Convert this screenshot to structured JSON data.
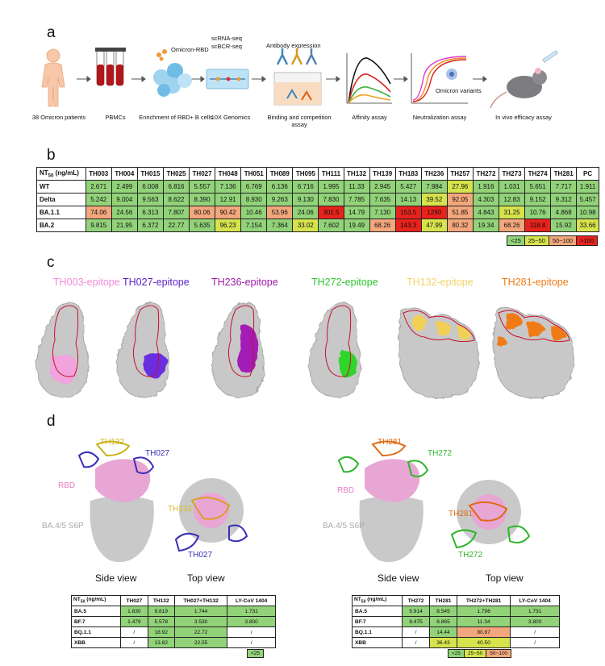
{
  "panels": {
    "a": "a",
    "b": "b",
    "c": "c",
    "d": "d"
  },
  "workflow": {
    "captions": [
      "38 Omicron patients",
      "PBMCs",
      "Enrichment of RBD+ B cells",
      "10X Genomics",
      "Binding and competition assay",
      "Affinity assay",
      "Neutralization assay",
      "In vivo efficacy assay"
    ],
    "omicron_rbd": "Omicron-RBD",
    "sc_seq_1": "scRNA-seq",
    "sc_seq_2": "scBCR-seq",
    "antibody_expression": "Antibody expression",
    "omicron_variants": "Omicron variants"
  },
  "table_b": {
    "header_label": "NT",
    "header_sub": "50",
    "header_unit": " (ng/mL)",
    "columns": [
      "TH003",
      "TH004",
      "TH015",
      "TH025",
      "TH027",
      "TH048",
      "TH051",
      "TH089",
      "TH095",
      "TH111",
      "TH132",
      "TH139",
      "TH183",
      "TH236",
      "TH257",
      "TH272",
      "TH273",
      "TH274",
      "TH281",
      "PC"
    ],
    "rows": [
      {
        "label": "WT",
        "values": [
          "2.671",
          "2.499",
          "6.008",
          "6.816",
          "5.557",
          "7.136",
          "6.769",
          "6.136",
          "6.716",
          "1.995",
          "11.33",
          "2.945",
          "5.427",
          "7.984",
          "27.96",
          "1.916",
          "1.031",
          "5.651",
          "7.717",
          "1.911"
        ],
        "colors": [
          "g",
          "g",
          "g",
          "g",
          "g",
          "g",
          "g",
          "g",
          "g",
          "g",
          "g",
          "g",
          "g",
          "g",
          "y",
          "g",
          "g",
          "g",
          "g",
          "g"
        ]
      },
      {
        "label": "Delta",
        "values": [
          "5.242",
          "9.004",
          "9.563",
          "8.622",
          "8.390",
          "12.91",
          "8.930",
          "9.263",
          "9.130",
          "7.830",
          "7.785",
          "7.635",
          "14.13",
          "39.52",
          "92.05",
          "4.303",
          "12.83",
          "9.152",
          "9.312",
          "5.457"
        ],
        "colors": [
          "g",
          "g",
          "g",
          "g",
          "g",
          "g",
          "g",
          "g",
          "g",
          "g",
          "g",
          "g",
          "g",
          "y",
          "o",
          "g",
          "g",
          "g",
          "g",
          "g"
        ]
      },
      {
        "label": "BA.1.1",
        "values": [
          "74.06",
          "24.56",
          "6.313",
          "7.807",
          "80.06",
          "90.42",
          "10.46",
          "53.96",
          "24.06",
          "301.5",
          "14.79",
          "7.130",
          "153.5",
          "1290",
          "51.85",
          "4.843",
          "31.25",
          "10.76",
          "4.868",
          "10.98"
        ],
        "colors": [
          "o",
          "g",
          "g",
          "g",
          "o",
          "o",
          "g",
          "o",
          "g",
          "r",
          "g",
          "g",
          "r",
          "r",
          "o",
          "g",
          "y",
          "g",
          "g",
          "g"
        ]
      },
      {
        "label": "BA.2",
        "values": [
          "9.815",
          "21.95",
          "6.372",
          "22.77",
          "5.635",
          "96.23",
          "7.154",
          "7.364",
          "33.02",
          "7.602",
          "19.49",
          "68.26",
          "143.3",
          "47.99",
          "80.32",
          "19.34",
          "68.26",
          "118.8",
          "15.92",
          "33.66"
        ],
        "colors": [
          "g",
          "g",
          "g",
          "g",
          "g",
          "y",
          "g",
          "g",
          "y",
          "g",
          "g",
          "o",
          "r",
          "y",
          "o",
          "g",
          "o",
          "r",
          "g",
          "y"
        ]
      }
    ],
    "legend": [
      {
        "label": "<25",
        "color": "g"
      },
      {
        "label": "25~50",
        "color": "y"
      },
      {
        "label": "50~100",
        "color": "o"
      },
      {
        "label": ">100",
        "color": "r"
      }
    ]
  },
  "epitopes": [
    {
      "label": "TH003-epitope",
      "color": "#f08ad8"
    },
    {
      "label": "TH027-epitope",
      "color": "#5a1fc8"
    },
    {
      "label": "TH236-epitope",
      "color": "#9b1aa8"
    },
    {
      "label": "TH272-epitope",
      "color": "#2fc42c"
    },
    {
      "label": "TH132-epitope",
      "color": "#f2d36a"
    },
    {
      "label": "TH281-epitope",
      "color": "#f07a18"
    }
  ],
  "panel_d": {
    "left": {
      "ab1": "TH132",
      "ab2": "TH027",
      "rbd": "RBD",
      "spike": "BA.4/5 S6P",
      "top_ab1": "TH132",
      "top_ab2": "TH027",
      "side_view": "Side view",
      "top_view": "Top view",
      "table": {
        "header_label": "NT",
        "header_sub": "50",
        "header_unit": " (ng/mL)",
        "columns": [
          "TH027",
          "TH132",
          "TH027+TH132",
          "LY-CoV 1404"
        ],
        "rows": [
          {
            "label": "BA.5",
            "values": [
              "1.830",
              "9.819",
              "1.744",
              "1.731"
            ],
            "colors": [
              "g",
              "g",
              "g",
              "g"
            ]
          },
          {
            "label": "BF.7",
            "values": [
              "1.479",
              "5.578",
              "3.530",
              "3.800"
            ],
            "colors": [
              "g",
              "g",
              "g",
              "g"
            ]
          },
          {
            "label": "BQ.1.1",
            "values": [
              "/",
              "18.92",
              "22.72",
              "/"
            ],
            "colors": [
              "w",
              "g",
              "g",
              "w"
            ]
          },
          {
            "label": "XBB",
            "values": [
              "/",
              "13.82",
              "22.55",
              "/"
            ],
            "colors": [
              "w",
              "g",
              "g",
              "w"
            ]
          }
        ],
        "legend": [
          {
            "label": "<25",
            "color": "g"
          }
        ]
      }
    },
    "right": {
      "ab1": "TH281",
      "ab2": "TH272",
      "rbd": "RBD",
      "spike": "BA.4/5 S6P",
      "top_ab1": "TH281",
      "top_ab2": "TH272",
      "side_view": "Side view",
      "top_view": "Top view",
      "table": {
        "header_label": "NT",
        "header_sub": "50",
        "header_unit": " (ng/mL)",
        "columns": [
          "TH272",
          "TH281",
          "TH272+TH281",
          "LY-CoV 1404"
        ],
        "rows": [
          {
            "label": "BA.5",
            "values": [
              "5.914",
              "8.545",
              "1.796",
              "1.731"
            ],
            "colors": [
              "g",
              "g",
              "g",
              "g"
            ]
          },
          {
            "label": "BF.7",
            "values": [
              "8.475",
              "8.865",
              "11.34",
              "3.800"
            ],
            "colors": [
              "g",
              "g",
              "g",
              "g"
            ]
          },
          {
            "label": "BQ.1.1",
            "values": [
              "/",
              "14.44",
              "80.87",
              "/"
            ],
            "colors": [
              "w",
              "g",
              "o",
              "w"
            ]
          },
          {
            "label": "XBB",
            "values": [
              "/",
              "36.43",
              "40.50",
              "/"
            ],
            "colors": [
              "w",
              "y",
              "y",
              "w"
            ]
          }
        ],
        "legend": [
          {
            "label": "<25",
            "color": "g"
          },
          {
            "label": "25~50",
            "color": "y"
          },
          {
            "label": "50~100",
            "color": "o"
          }
        ]
      }
    }
  }
}
